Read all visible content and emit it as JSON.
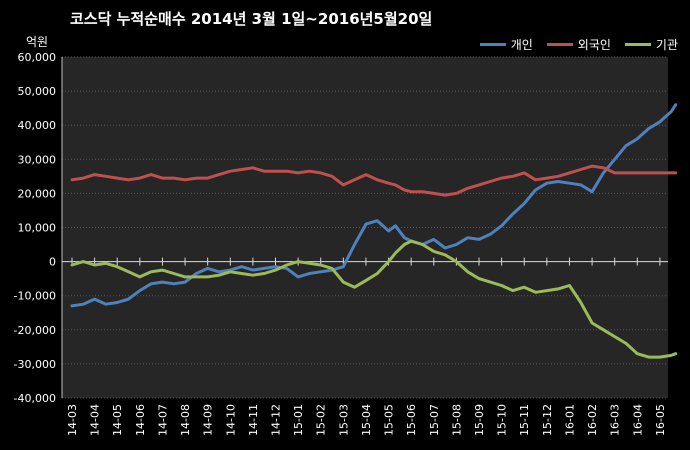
{
  "chart_data": {
    "type": "line",
    "title": "코스닥  누적순매수 2014년 3월 1일~2016년5월20일",
    "unit_label": "억원",
    "ylim": [
      -40000,
      60000
    ],
    "yticks": [
      -40000,
      -30000,
      -20000,
      -10000,
      0,
      10000,
      20000,
      30000,
      40000,
      50000,
      60000
    ],
    "ytick_labels": [
      "-40,000",
      "-30,000",
      "-20,000",
      "-10,000",
      "0",
      "10,000",
      "20,000",
      "30,000",
      "40,000",
      "50,000",
      "60,000"
    ],
    "categories": [
      "14-03",
      "14-04",
      "14-05",
      "14-06",
      "14-07",
      "14-08",
      "14-09",
      "14-10",
      "14-11",
      "14-12",
      "15-01",
      "15-02",
      "15-03",
      "15-04",
      "15-05",
      "15-06",
      "15-07",
      "15-08",
      "15-09",
      "15-10",
      "15-11",
      "15-12",
      "16-01",
      "16-02",
      "16-03",
      "16-04",
      "16-05"
    ],
    "x_values": [
      0,
      0.5,
      1,
      1.5,
      2,
      2.5,
      3,
      3.5,
      4,
      4.5,
      5,
      5.5,
      6,
      6.5,
      7,
      7.5,
      8,
      8.5,
      9,
      9.5,
      10,
      10.5,
      11,
      11.5,
      12,
      12.5,
      13,
      13.5,
      14,
      14.3,
      14.7,
      15,
      15.5,
      16,
      16.5,
      17,
      17.5,
      18,
      18.5,
      19,
      19.5,
      20,
      20.5,
      21,
      21.5,
      22,
      22.5,
      23,
      23.5,
      24,
      24.5,
      25,
      25.5,
      26,
      26.5,
      26.7
    ],
    "series": [
      {
        "name": "개인",
        "color": "#4f81bd",
        "values": [
          -13000,
          -12500,
          -11000,
          -12500,
          -12000,
          -11000,
          -8500,
          -6500,
          -6000,
          -6500,
          -6000,
          -3500,
          -2000,
          -3000,
          -2500,
          -1500,
          -2500,
          -2000,
          -1500,
          -2000,
          -4500,
          -3500,
          -3000,
          -2500,
          -1500,
          5000,
          11000,
          12000,
          9000,
          10500,
          7000,
          6000,
          5000,
          6500,
          4000,
          5000,
          7000,
          6500,
          8000,
          10500,
          14000,
          17000,
          21000,
          23000,
          23500,
          23000,
          22500,
          20500,
          26000,
          30000,
          34000,
          36000,
          39000,
          41000,
          44000,
          46000
        ]
      },
      {
        "name": "외국인",
        "color": "#c0504d",
        "values": [
          24000,
          24500,
          25500,
          25000,
          24500,
          24000,
          24500,
          25500,
          24500,
          24500,
          24000,
          24500,
          24500,
          25500,
          26500,
          27000,
          27500,
          26500,
          26500,
          26500,
          26000,
          26500,
          26000,
          25000,
          22500,
          24000,
          25500,
          24000,
          23000,
          22500,
          21000,
          20500,
          20500,
          20000,
          19500,
          20000,
          21500,
          22500,
          23500,
          24500,
          25000,
          26000,
          24000,
          24500,
          25000,
          26000,
          27000,
          28000,
          27500,
          26000,
          26000,
          26000,
          26000,
          26000,
          26000,
          26000
        ]
      },
      {
        "name": "기관",
        "color": "#9bbb59",
        "values": [
          -1000,
          0,
          -1000,
          -500,
          -1500,
          -3000,
          -4500,
          -3000,
          -2500,
          -3500,
          -4500,
          -4500,
          -4500,
          -4000,
          -3000,
          -3500,
          -4000,
          -3500,
          -2500,
          -1000,
          0,
          -500,
          -1000,
          -2000,
          -6000,
          -7500,
          -5500,
          -3500,
          0,
          2500,
          5000,
          6000,
          5000,
          3000,
          2000,
          0,
          -3000,
          -5000,
          -6000,
          -7000,
          -8500,
          -7500,
          -9000,
          -8500,
          -8000,
          -7000,
          -12000,
          -18000,
          -20000,
          -22000,
          -24000,
          -27000,
          -28000,
          -28000,
          -27500,
          -27000
        ]
      }
    ]
  }
}
